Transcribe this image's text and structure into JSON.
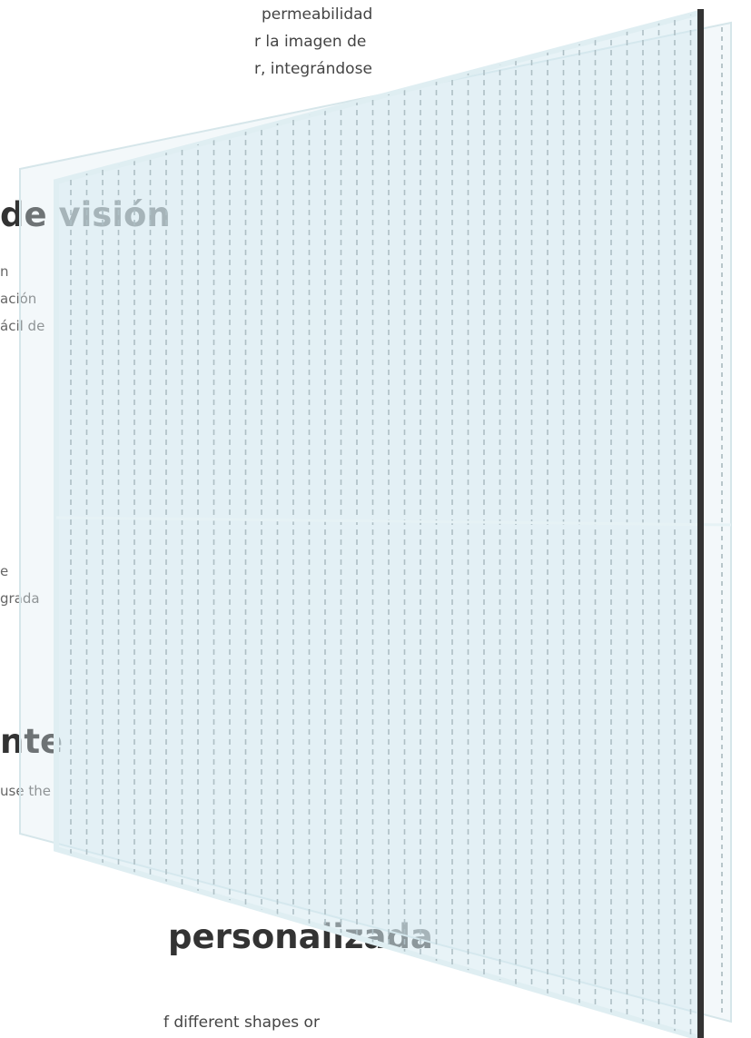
{
  "sections": [
    {
      "paragraph": [
        "permeabilidad",
        "r la imagen de",
        "r, integrándose"
      ]
    },
    {
      "heading": "de visión",
      "paragraph": [
        "n",
        "ación",
        "ácil de"
      ]
    },
    {
      "paragraph": [
        "e",
        "grada"
      ]
    },
    {
      "heading": "nte",
      "paragraph": [
        "use the"
      ]
    },
    {
      "heading": "personalizada",
      "paragraph": [
        "f different shapes or"
      ]
    }
  ]
}
